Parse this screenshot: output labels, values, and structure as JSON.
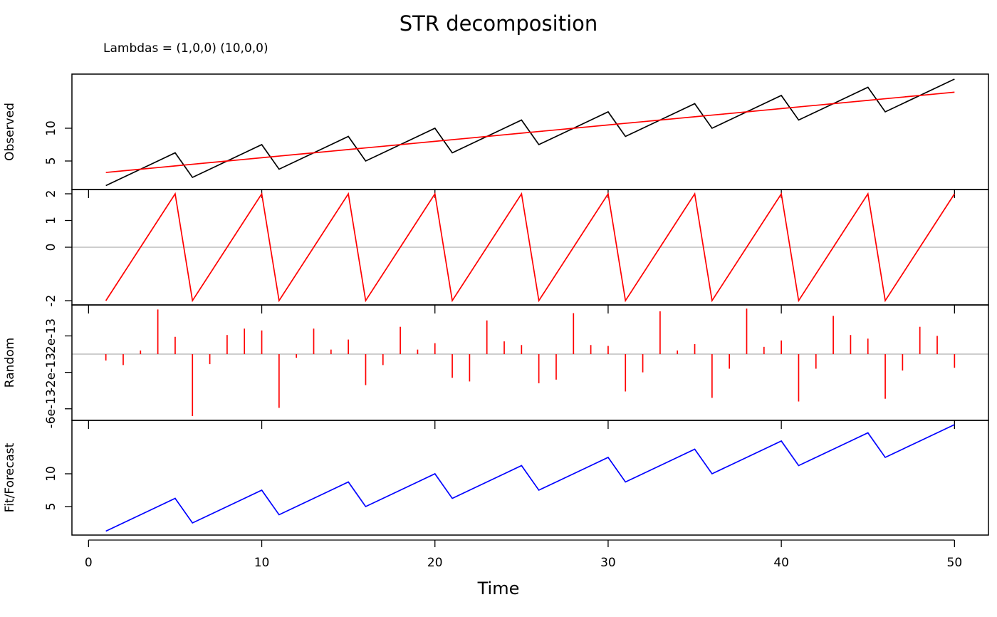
{
  "chart_data": {
    "title": "STR decomposition",
    "subtitle": "Lambdas = (1,0,0) (10,0,0)",
    "x_label": "Time",
    "x": [
      1,
      2,
      3,
      4,
      5,
      6,
      7,
      8,
      9,
      10,
      11,
      12,
      13,
      14,
      15,
      16,
      17,
      18,
      19,
      20,
      21,
      22,
      23,
      24,
      25,
      26,
      27,
      28,
      29,
      30,
      31,
      32,
      33,
      34,
      35,
      36,
      37,
      38,
      39,
      40,
      41,
      42,
      43,
      44,
      45,
      46,
      47,
      48,
      49,
      50
    ],
    "xlim": [
      -0.96,
      51.96
    ],
    "xticks": [
      0,
      10,
      20,
      30,
      40,
      50
    ],
    "panels": [
      {
        "type": "line",
        "y_label": "Observed",
        "ylim": [
          0.65,
          18.26
        ],
        "yticks": [
          5,
          10
        ],
        "zero_line": false,
        "series": [
          {
            "color": "#000000",
            "values": [
              1.25,
              2.5,
              3.75,
              5,
              6.25,
              2.5,
              3.75,
              5,
              6.25,
              7.5,
              3.75,
              5,
              6.25,
              7.5,
              8.75,
              5,
              6.25,
              7.5,
              8.75,
              10,
              6.25,
              7.5,
              8.75,
              10,
              11.25,
              7.5,
              8.75,
              10,
              11.25,
              12.5,
              8.75,
              10,
              11.25,
              12.5,
              13.75,
              10,
              11.25,
              12.5,
              13.75,
              15,
              11.25,
              12.5,
              13.75,
              15,
              16.25,
              12.5,
              13.75,
              15,
              16.25,
              17.5
            ]
          },
          {
            "color": "#ff0000",
            "values": [
              3.25,
              3.5,
              3.75,
              4,
              4.25,
              4.5,
              4.75,
              5,
              5.25,
              5.5,
              5.75,
              6,
              6.25,
              6.5,
              6.75,
              7,
              7.25,
              7.5,
              7.75,
              8,
              8.25,
              8.5,
              8.75,
              9,
              9.25,
              9.5,
              9.75,
              10,
              10.25,
              10.5,
              10.75,
              11,
              11.25,
              11.5,
              11.75,
              12,
              12.25,
              12.5,
              12.75,
              13,
              13.25,
              13.5,
              13.75,
              14,
              14.25,
              14.5,
              14.75,
              15,
              15.25,
              15.5
            ]
          }
        ]
      },
      {
        "type": "line",
        "ylim": [
          -2.16,
          2.16
        ],
        "yticks": [
          -2,
          0,
          1,
          2
        ],
        "zero_line": true,
        "series": [
          {
            "color": "#ff0000",
            "values": [
              -2,
              -1,
              0,
              1,
              2,
              -2,
              -1,
              0,
              1,
              2,
              -2,
              -1,
              0,
              1,
              2,
              -2,
              -1,
              0,
              1,
              2,
              -2,
              -1,
              0,
              1,
              2,
              -2,
              -1,
              0,
              1,
              2,
              -2,
              -1,
              0,
              1,
              2,
              -2,
              -1,
              0,
              1,
              2,
              -2,
              -1,
              0,
              1,
              2,
              -2,
              -1,
              0,
              1,
              2
            ]
          }
        ]
      },
      {
        "type": "spike",
        "y_label": "Random",
        "ylim": [
          -7.27e-13,
          5.4e-13
        ],
        "yticks": [
          -6e-13,
          -2e-13,
          2e-13
        ],
        "zero_line": true,
        "series": [
          {
            "color": "#ff0000",
            "values": [
              -7e-14,
              -1.2e-13,
              4e-14,
              4.9e-13,
              1.9e-13,
              -6.8e-13,
              -1.1e-13,
              2.1e-13,
              2.8e-13,
              2.6e-13,
              -5.9e-13,
              -4e-14,
              2.8e-13,
              5e-14,
              1.6e-13,
              -3.4e-13,
              -1.2e-13,
              3e-13,
              5e-14,
              1.2e-13,
              -2.6e-13,
              -3e-13,
              3.7e-13,
              1.4e-13,
              1e-13,
              -3.2e-13,
              -2.8e-13,
              4.5e-13,
              1e-13,
              9e-14,
              -4.1e-13,
              -2e-13,
              4.7e-13,
              4e-14,
              1.1e-13,
              -4.8e-13,
              -1.6e-13,
              5e-13,
              8e-14,
              1.5e-13,
              -5.2e-13,
              -1.6e-13,
              4.2e-13,
              2.1e-13,
              1.7e-13,
              -4.9e-13,
              -1.8e-13,
              3e-13,
              2e-13,
              -1.5e-13
            ]
          }
        ]
      },
      {
        "type": "line",
        "y_label": "Fit/Forecast",
        "ylim": [
          0.65,
          18.15
        ],
        "yticks": [
          5,
          10
        ],
        "zero_line": false,
        "series": [
          {
            "color": "#0000ff",
            "values": [
              1.25,
              2.5,
              3.75,
              5,
              6.25,
              2.5,
              3.75,
              5,
              6.25,
              7.5,
              3.75,
              5,
              6.25,
              7.5,
              8.75,
              5,
              6.25,
              7.5,
              8.75,
              10,
              6.25,
              7.5,
              8.75,
              10,
              11.25,
              7.5,
              8.75,
              10,
              11.25,
              12.5,
              8.75,
              10,
              11.25,
              12.5,
              13.75,
              10,
              11.25,
              12.5,
              13.75,
              15,
              11.25,
              12.5,
              13.75,
              15,
              16.25,
              12.5,
              13.75,
              15,
              16.25,
              17.5
            ]
          }
        ]
      }
    ]
  }
}
